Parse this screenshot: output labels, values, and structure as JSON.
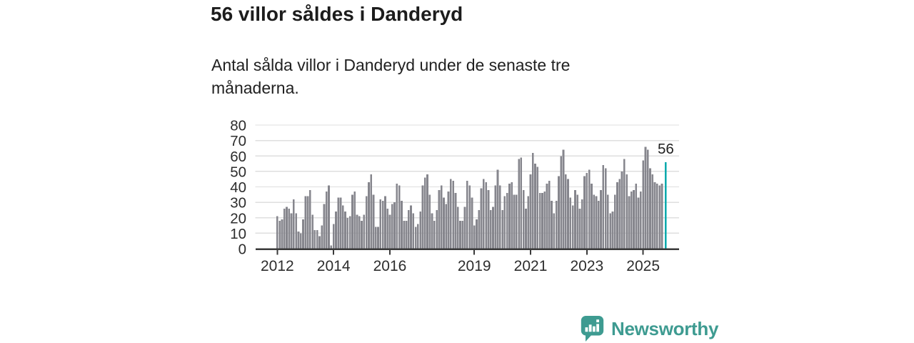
{
  "header": {
    "title": "56 villor såldes i Danderyd",
    "subtitle": "Antal sålda villor i Danderyd under de senaste tre månaderna."
  },
  "chart_data": {
    "type": "bar",
    "title": "56 villor såldes i Danderyd",
    "frequency": "monthly",
    "x_start": "2012-01",
    "x_end": "2025-10",
    "values": [
      21,
      18,
      19,
      26,
      27,
      26,
      23,
      32,
      23,
      11,
      10,
      19,
      34,
      34,
      38,
      22,
      12,
      12,
      8,
      15,
      29,
      37,
      41,
      2,
      16,
      24,
      33,
      33,
      28,
      24,
      20,
      21,
      35,
      37,
      22,
      21,
      18,
      22,
      34,
      43,
      48,
      35,
      14,
      14,
      32,
      31,
      34,
      26,
      22,
      29,
      30,
      42,
      41,
      31,
      18,
      18,
      25,
      28,
      23,
      14,
      16,
      24,
      41,
      46,
      48,
      35,
      23,
      18,
      25,
      38,
      41,
      33,
      29,
      37,
      45,
      44,
      36,
      27,
      18,
      18,
      27,
      44,
      41,
      33,
      15,
      19,
      25,
      39,
      45,
      43,
      38,
      25,
      27,
      41,
      51,
      41,
      25,
      34,
      36,
      42,
      43,
      35,
      35,
      58,
      59,
      38,
      26,
      34,
      48,
      62,
      55,
      53,
      36,
      36,
      37,
      42,
      44,
      31,
      23,
      31,
      47,
      60,
      64,
      48,
      45,
      33,
      28,
      38,
      35,
      26,
      32,
      47,
      49,
      51,
      42,
      35,
      34,
      31,
      38,
      54,
      52,
      35,
      23,
      24,
      35,
      43,
      45,
      50,
      58,
      48,
      34,
      37,
      38,
      42,
      33,
      37,
      57,
      66,
      64,
      52,
      48,
      43,
      42,
      41,
      42,
      56
    ],
    "last_value": 56,
    "annotation_label": "56",
    "ylim": [
      0,
      80
    ],
    "y_ticks": [
      0,
      10,
      20,
      30,
      40,
      50,
      60,
      70,
      80
    ],
    "x_ticks": [
      2012,
      2014,
      2016,
      2019,
      2021,
      2023,
      2025
    ],
    "grid": true,
    "legend": "none",
    "bar_color": "#86868d",
    "highlight_color": "#00a9ac",
    "axis_color": "#3a3a3a",
    "grid_color": "#dfdfdf",
    "tick_label_color": "#2d2d2d"
  },
  "branding": {
    "logo_text": "Newsworthy",
    "logo_color": "#3e9b91",
    "logo_icon": "bar-chart-speech-bubble-icon"
  }
}
